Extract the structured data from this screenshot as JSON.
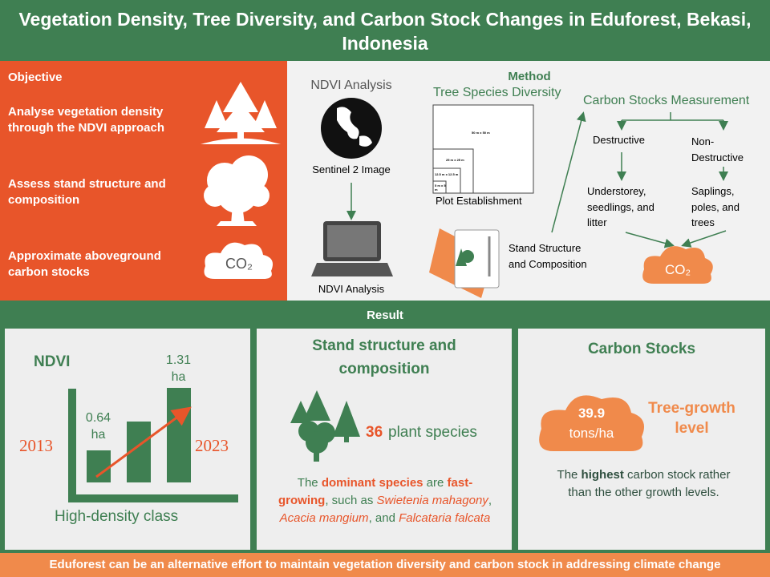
{
  "header": {
    "title": "Vegetation Density, Tree Diversity, and Carbon Stock Changes in Eduforest, Bekasi, Indonesia"
  },
  "objective": {
    "heading": "Objective",
    "items": [
      "Analyse vegetation density through the NDVI approach",
      "Assess stand structure and composition",
      "Approximate aboveground carbon stocks"
    ],
    "co2_icon": "CO₂"
  },
  "method": {
    "heading": "Method",
    "ndvi": {
      "title": "NDVI Analysis",
      "image_label": "Sentinel 2 Image",
      "output_label": "NDVI Analysis"
    },
    "diversity": {
      "title": "Tree Species Diversity",
      "plot_sizes": [
        "50 m x 50 m",
        "25 m x 25 m",
        "12.5 m x 12.5 m",
        "5 m x 5 m"
      ],
      "plot_label": "Plot Establishment",
      "stand_label": "Stand Structure and Composition"
    },
    "carbon": {
      "title": "Carbon Stocks Measurement",
      "destructive": "Destructive",
      "non_destructive": "Non-Destructive",
      "destructive_items": "Understorey, seedlings, and litter",
      "non_destructive_items": "Saplings, poles, and trees",
      "result": "CO₂"
    }
  },
  "result": {
    "heading": "Result",
    "ndvi": {
      "title": "NDVI",
      "start_year": "2013",
      "end_year": "2023",
      "start_value": "0.64 ha",
      "end_value": "1.31 ha",
      "caption": "High-density class"
    },
    "stand": {
      "title": "Stand structure and composition",
      "count": "36",
      "count_label": "plant species",
      "description": [
        {
          "text": "The ",
          "style": "plain"
        },
        {
          "text": "dominant species",
          "style": "accent-bold"
        },
        {
          "text": " are ",
          "style": "plain"
        },
        {
          "text": "fast-growing",
          "style": "accent-bold"
        },
        {
          "text": ", such as ",
          "style": "plain"
        },
        {
          "text": "Swietenia mahagony",
          "style": "accent-italic"
        },
        {
          "text": ", ",
          "style": "plain"
        },
        {
          "text": "Acacia mangium",
          "style": "accent-italic"
        },
        {
          "text": ", and ",
          "style": "plain"
        },
        {
          "text": "Falcataria falcata",
          "style": "accent-italic"
        }
      ]
    },
    "carbon": {
      "title": "Carbon Stocks",
      "value": "39.9",
      "unit": "tons/ha",
      "level": "Tree-growth level",
      "description": [
        {
          "text": "The ",
          "style": "plain"
        },
        {
          "text": "highest",
          "style": "bold"
        },
        {
          "text": " carbon stock rather than the other growth levels.",
          "style": "plain"
        }
      ]
    }
  },
  "footer": "Eduforest can be an alternative effort to maintain vegetation diversity and carbon stock in addressing climate change"
}
